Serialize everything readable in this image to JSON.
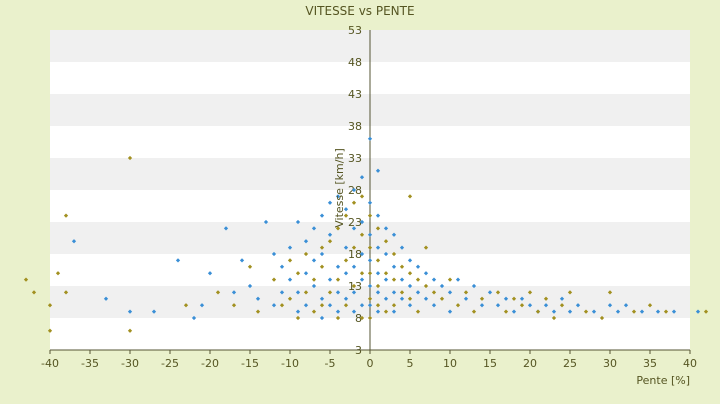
{
  "chart_data": {
    "type": "scatter",
    "title": "VITESSE vs PENTE",
    "xlabel": "Pente [%]",
    "ylabel": "Vitesse [km/h]",
    "xlim": [
      -40,
      40
    ],
    "ylim": [
      3,
      53
    ],
    "xticks": [
      -40,
      -35,
      -30,
      -25,
      -20,
      -15,
      -10,
      -5,
      0,
      5,
      10,
      15,
      20,
      25,
      30,
      35,
      40
    ],
    "yticks": [
      3,
      8,
      13,
      18,
      23,
      28,
      33,
      38,
      43,
      48,
      53
    ],
    "grid": "horizontal alternating bands",
    "colors": {
      "background": "#eaf1cc",
      "band_light": "#ffffff",
      "band_dark": "#f0f0f0",
      "axis": "#555533",
      "text": "#555522",
      "marker_blue": "#3a8fd6",
      "marker_olive": "#a29020"
    },
    "series": [
      {
        "color": "#3a8fd6",
        "points": [
          [
            -37,
            20
          ],
          [
            -33,
            11
          ],
          [
            -30,
            9
          ],
          [
            -27,
            9
          ],
          [
            -24,
            17
          ],
          [
            -22,
            8
          ],
          [
            -21,
            10
          ],
          [
            -20,
            15
          ],
          [
            -18,
            22
          ],
          [
            -17,
            12
          ],
          [
            -16,
            17
          ],
          [
            -15,
            13
          ],
          [
            -14,
            11
          ],
          [
            -13,
            23
          ],
          [
            -12,
            18
          ],
          [
            -12,
            10
          ],
          [
            -11,
            16
          ],
          [
            -11,
            12
          ],
          [
            -10,
            19
          ],
          [
            -10,
            14
          ],
          [
            -9,
            23
          ],
          [
            -9,
            12
          ],
          [
            -9,
            9
          ],
          [
            -8,
            20
          ],
          [
            -8,
            15
          ],
          [
            -8,
            10
          ],
          [
            -7,
            22
          ],
          [
            -7,
            17
          ],
          [
            -7,
            13
          ],
          [
            -6,
            24
          ],
          [
            -6,
            18
          ],
          [
            -6,
            11
          ],
          [
            -6,
            8
          ],
          [
            -5,
            26
          ],
          [
            -5,
            21
          ],
          [
            -5,
            14
          ],
          [
            -5,
            10
          ],
          [
            -4,
            27
          ],
          [
            -4,
            16
          ],
          [
            -4,
            12
          ],
          [
            -4,
            9
          ],
          [
            -3,
            25
          ],
          [
            -3,
            19
          ],
          [
            -3,
            15
          ],
          [
            -3,
            11
          ],
          [
            -2,
            28
          ],
          [
            -2,
            22
          ],
          [
            -2,
            16
          ],
          [
            -2,
            12
          ],
          [
            -2,
            9
          ],
          [
            -1,
            30
          ],
          [
            -1,
            23
          ],
          [
            -1,
            18
          ],
          [
            -1,
            14
          ],
          [
            -1,
            10
          ],
          [
            0,
            36
          ],
          [
            0,
            26
          ],
          [
            0,
            21
          ],
          [
            0,
            17
          ],
          [
            0,
            13
          ],
          [
            0,
            10
          ],
          [
            1,
            31
          ],
          [
            1,
            24
          ],
          [
            1,
            19
          ],
          [
            1,
            15
          ],
          [
            1,
            12
          ],
          [
            1,
            9
          ],
          [
            2,
            22
          ],
          [
            2,
            18
          ],
          [
            2,
            14
          ],
          [
            2,
            11
          ],
          [
            3,
            21
          ],
          [
            3,
            16
          ],
          [
            3,
            12
          ],
          [
            3,
            9
          ],
          [
            4,
            19
          ],
          [
            4,
            14
          ],
          [
            4,
            11
          ],
          [
            5,
            17
          ],
          [
            5,
            13
          ],
          [
            5,
            10
          ],
          [
            6,
            16
          ],
          [
            6,
            12
          ],
          [
            7,
            15
          ],
          [
            7,
            11
          ],
          [
            8,
            14
          ],
          [
            8,
            10
          ],
          [
            9,
            13
          ],
          [
            10,
            12
          ],
          [
            10,
            9
          ],
          [
            11,
            14
          ],
          [
            12,
            11
          ],
          [
            13,
            13
          ],
          [
            14,
            10
          ],
          [
            15,
            12
          ],
          [
            16,
            10
          ],
          [
            17,
            11
          ],
          [
            18,
            9
          ],
          [
            19,
            11
          ],
          [
            20,
            10
          ],
          [
            21,
            9
          ],
          [
            22,
            10
          ],
          [
            23,
            9
          ],
          [
            24,
            11
          ],
          [
            25,
            9
          ],
          [
            26,
            10
          ],
          [
            28,
            9
          ],
          [
            30,
            10
          ],
          [
            31,
            9
          ],
          [
            32,
            10
          ],
          [
            34,
            9
          ],
          [
            36,
            9
          ],
          [
            38,
            9
          ],
          [
            41,
            9
          ]
        ]
      },
      {
        "color": "#a29020",
        "points": [
          [
            -43,
            14
          ],
          [
            -42,
            12
          ],
          [
            -40,
            6
          ],
          [
            -40,
            10
          ],
          [
            -39,
            15
          ],
          [
            -38,
            24
          ],
          [
            -38,
            12
          ],
          [
            -30,
            33
          ],
          [
            -30,
            6
          ],
          [
            -23,
            10
          ],
          [
            -19,
            12
          ],
          [
            -17,
            10
          ],
          [
            -15,
            16
          ],
          [
            -14,
            9
          ],
          [
            -12,
            14
          ],
          [
            -11,
            10
          ],
          [
            -10,
            17
          ],
          [
            -10,
            11
          ],
          [
            -9,
            15
          ],
          [
            -9,
            8
          ],
          [
            -8,
            18
          ],
          [
            -8,
            12
          ],
          [
            -7,
            14
          ],
          [
            -7,
            9
          ],
          [
            -6,
            19
          ],
          [
            -6,
            16
          ],
          [
            -6,
            10
          ],
          [
            -5,
            20
          ],
          [
            -5,
            12
          ],
          [
            -4,
            22
          ],
          [
            -4,
            14
          ],
          [
            -4,
            8
          ],
          [
            -3,
            24
          ],
          [
            -3,
            17
          ],
          [
            -3,
            10
          ],
          [
            -2,
            26
          ],
          [
            -2,
            19
          ],
          [
            -2,
            13
          ],
          [
            -1,
            27
          ],
          [
            -1,
            21
          ],
          [
            -1,
            15
          ],
          [
            -1,
            8
          ],
          [
            0,
            24
          ],
          [
            0,
            19
          ],
          [
            0,
            15
          ],
          [
            0,
            11
          ],
          [
            0,
            8
          ],
          [
            1,
            22
          ],
          [
            1,
            17
          ],
          [
            1,
            13
          ],
          [
            1,
            10
          ],
          [
            2,
            20
          ],
          [
            2,
            15
          ],
          [
            2,
            9
          ],
          [
            3,
            18
          ],
          [
            3,
            14
          ],
          [
            3,
            10
          ],
          [
            4,
            16
          ],
          [
            4,
            12
          ],
          [
            5,
            27
          ],
          [
            5,
            15
          ],
          [
            5,
            11
          ],
          [
            6,
            14
          ],
          [
            6,
            9
          ],
          [
            7,
            19
          ],
          [
            7,
            13
          ],
          [
            8,
            12
          ],
          [
            9,
            11
          ],
          [
            10,
            14
          ],
          [
            11,
            10
          ],
          [
            12,
            12
          ],
          [
            13,
            9
          ],
          [
            14,
            11
          ],
          [
            16,
            12
          ],
          [
            17,
            9
          ],
          [
            18,
            11
          ],
          [
            19,
            10
          ],
          [
            20,
            12
          ],
          [
            21,
            9
          ],
          [
            22,
            11
          ],
          [
            23,
            8
          ],
          [
            24,
            10
          ],
          [
            25,
            12
          ],
          [
            27,
            9
          ],
          [
            29,
            8
          ],
          [
            30,
            12
          ],
          [
            33,
            9
          ],
          [
            35,
            10
          ],
          [
            37,
            9
          ],
          [
            42,
            9
          ]
        ]
      }
    ]
  }
}
